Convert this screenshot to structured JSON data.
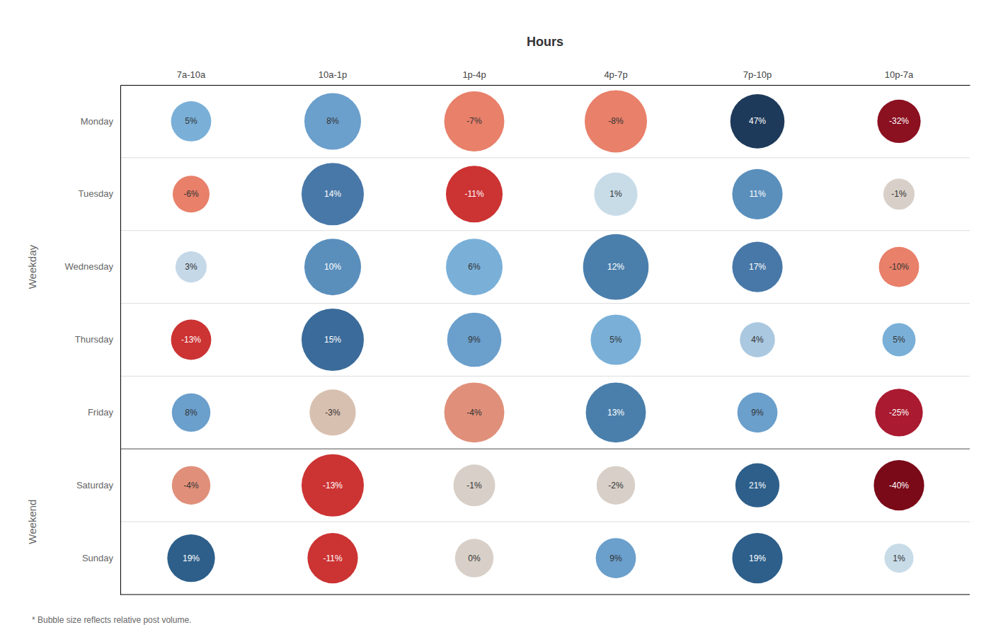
{
  "chart_data": {
    "type": "bubble",
    "title": "Hours",
    "footnote": "* Bubble size reflects relative post volume.",
    "categories": [
      "7a-10a",
      "10a-1p",
      "1p-4p",
      "4p-7p",
      "7p-10p",
      "10p-7a"
    ],
    "rows": [
      "Monday",
      "Tuesday",
      "Wednesday",
      "Thursday",
      "Friday",
      "Saturday",
      "Sunday"
    ],
    "groups": [
      {
        "name": "Weekday",
        "size": 5
      },
      {
        "name": "Weekend",
        "size": 2
      }
    ],
    "values": [
      [
        5,
        8,
        -7,
        -8,
        47,
        -32
      ],
      [
        -6,
        14,
        -11,
        1,
        11,
        -1
      ],
      [
        3,
        10,
        6,
        12,
        17,
        -10
      ],
      [
        -13,
        15,
        9,
        5,
        4,
        5
      ],
      [
        8,
        -3,
        -4,
        13,
        9,
        -25
      ],
      [
        -4,
        -13,
        -1,
        -2,
        21,
        -40
      ],
      [
        19,
        -11,
        0,
        9,
        19,
        1
      ]
    ],
    "value_labels": [
      [
        "5%",
        "8%",
        "-7%",
        "-8%",
        "47%",
        "-32%"
      ],
      [
        "-6%",
        "14%",
        "-11%",
        "1%",
        "11%",
        "-1%"
      ],
      [
        "3%",
        "10%",
        "6%",
        "12%",
        "17%",
        "-10%"
      ],
      [
        "-13%",
        "15%",
        "9%",
        "5%",
        "4%",
        "5%"
      ],
      [
        "8%",
        "-3%",
        "-4%",
        "13%",
        "9%",
        "-25%"
      ],
      [
        "-4%",
        "-13%",
        "-1%",
        "-2%",
        "21%",
        "-40%"
      ],
      [
        "19%",
        "-11%",
        "0%",
        "9%",
        "19%",
        "1%"
      ]
    ],
    "sizes": [
      [
        28,
        52,
        58,
        62,
        48,
        32
      ],
      [
        24,
        62,
        52,
        32,
        42,
        18
      ],
      [
        18,
        52,
        52,
        68,
        42,
        28
      ],
      [
        28,
        62,
        48,
        42,
        22,
        20
      ],
      [
        26,
        36,
        58,
        58,
        28,
        38
      ],
      [
        26,
        62,
        30,
        26,
        33,
        42
      ],
      [
        38,
        42,
        26,
        28,
        42,
        16
      ]
    ],
    "colors": [
      [
        "#7ab0d8",
        "#6b9fcc",
        "#e8806a",
        "#e8806a",
        "#1e3a5a",
        "#8b1020"
      ],
      [
        "#e8806a",
        "#4878a8",
        "#cc3333",
        "#c8dce8",
        "#5a8fbc",
        "#d8d0c8"
      ],
      [
        "#c5d8e8",
        "#5a8fbc",
        "#7ab0d8",
        "#4a7fac",
        "#4878a8",
        "#e8806a"
      ],
      [
        "#cc3333",
        "#3a6b9a",
        "#6b9fcc",
        "#7ab0d8",
        "#aac8e0",
        "#7ab0d8"
      ],
      [
        "#6b9fcc",
        "#d8c0b0",
        "#e0907a",
        "#4a7fac",
        "#6b9fcc",
        "#aa1a30"
      ],
      [
        "#e0907a",
        "#cc3333",
        "#d8d0c8",
        "#d8d0c8",
        "#2d5f8a",
        "#7a0a18"
      ],
      [
        "#2d5f8a",
        "#cc3333",
        "#d8d0c8",
        "#6b9fcc",
        "#2d5f8a",
        "#c8dce8"
      ]
    ],
    "data_labels": true,
    "grid": true
  }
}
